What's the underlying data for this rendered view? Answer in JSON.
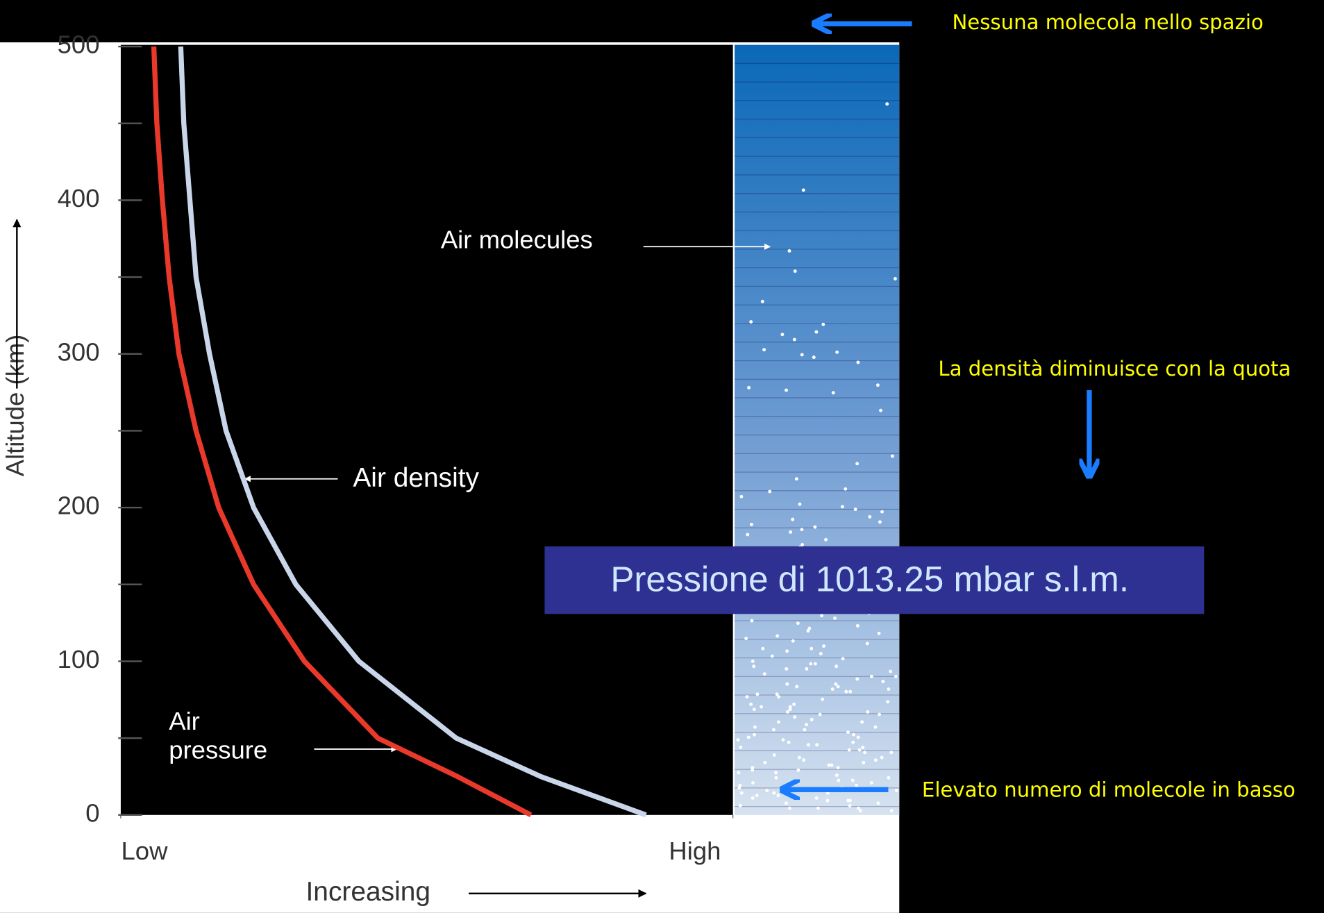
{
  "chart_data": {
    "type": "line",
    "y_label": "Altitude (km)",
    "x_label": "Increasing",
    "ylim": [
      0,
      500
    ],
    "yticks": [
      0,
      100,
      200,
      300,
      400,
      500
    ],
    "yminorticks": [
      50,
      150,
      250,
      350,
      450
    ],
    "xlim": [
      0,
      100
    ],
    "xticks": [
      {
        "value": 0,
        "label": "Low"
      },
      {
        "value": 100,
        "label": "High"
      }
    ],
    "series": [
      {
        "name": "Air pressure",
        "color": "#e8392b",
        "x": [
          67,
          55,
          42,
          30,
          21.7,
          16,
          12.3,
          9.5,
          7.9,
          6.8,
          5.9,
          5.4
        ],
        "values": [
          0,
          25,
          50,
          100,
          150,
          200,
          250,
          300,
          350,
          400,
          450,
          500
        ]
      },
      {
        "name": "Air density",
        "color": "#c9d6ea",
        "x": [
          85.8,
          68.6,
          54.8,
          38.9,
          28.6,
          21.7,
          17.2,
          14.5,
          12.3,
          11.3,
          10.3,
          9.8
        ],
        "values": [
          0,
          25,
          50,
          100,
          150,
          200,
          250,
          300,
          350,
          400,
          450,
          500
        ]
      }
    ],
    "column_label": "Air molecules",
    "annotations": [
      "Nessuna molecola nello spazio",
      "La densità diminuisce con la quota",
      "Elevato numero di molecole in basso"
    ],
    "callout": "Pressione di 1013.25 mbar s.l.m."
  }
}
